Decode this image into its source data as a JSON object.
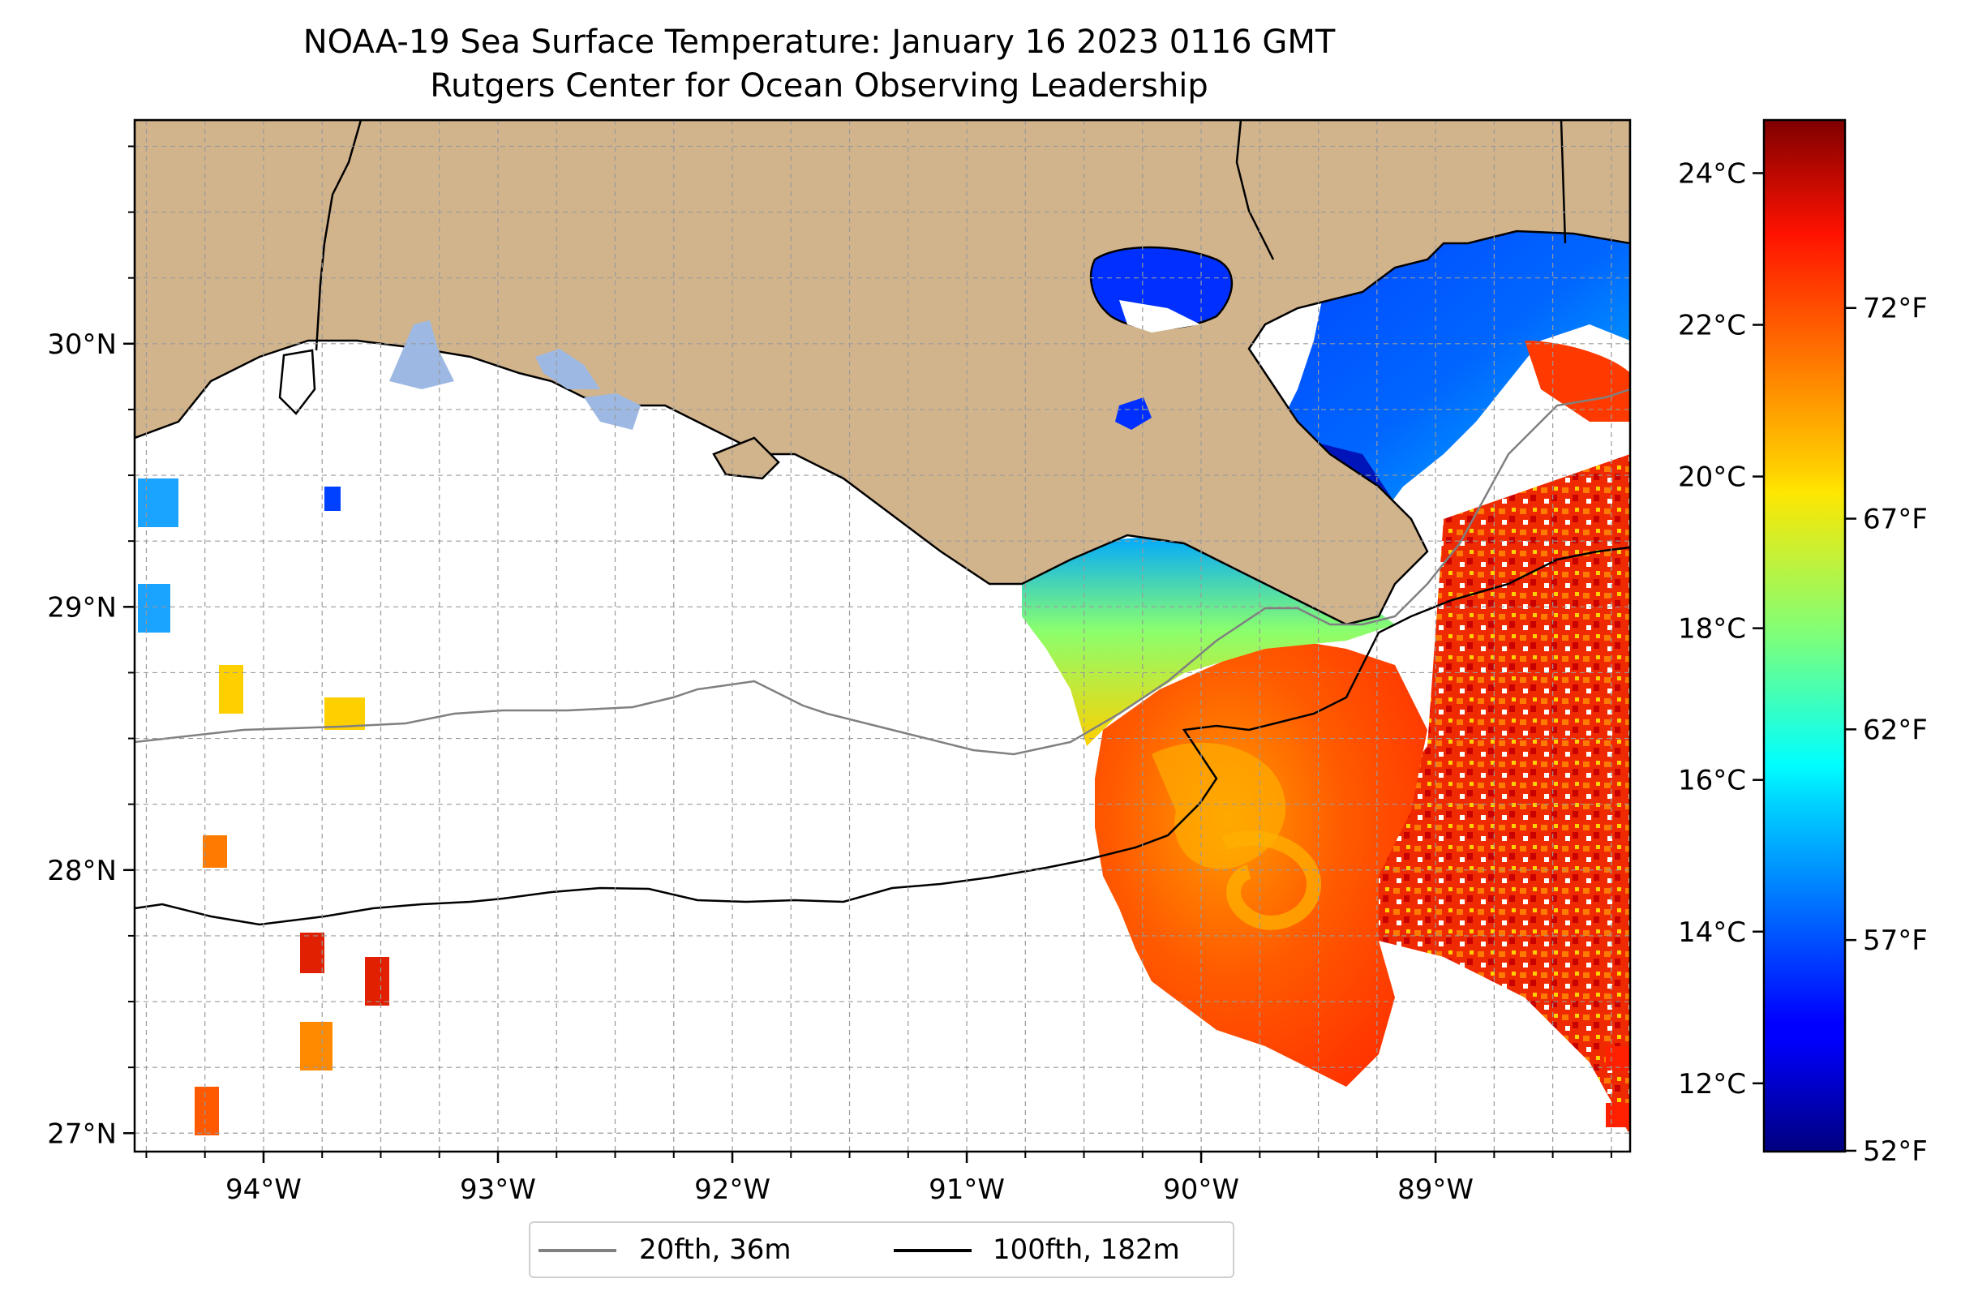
{
  "title": {
    "line1": "NOAA-19 Sea Surface Temperature: January 16 2023 0116 GMT",
    "line2": "Rutgers Center for Ocean Observing Leadership"
  },
  "map": {
    "lon_range": [
      -94.55,
      -88.17
    ],
    "lat_range": [
      26.93,
      30.85
    ],
    "lon_ticks": [
      {
        "value": -94,
        "label": "94°W"
      },
      {
        "value": -93,
        "label": "93°W"
      },
      {
        "value": -92,
        "label": "92°W"
      },
      {
        "value": -91,
        "label": "91°W"
      },
      {
        "value": -90,
        "label": "90°W"
      },
      {
        "value": -89,
        "label": "89°W"
      }
    ],
    "lat_ticks": [
      {
        "value": 27,
        "label": "27°N"
      },
      {
        "value": 28,
        "label": "28°N"
      },
      {
        "value": 29,
        "label": "29°N"
      },
      {
        "value": 30,
        "label": "30°N"
      }
    ],
    "grid": true,
    "land_color": "#d2b48c",
    "water_body_color": "#9db9e3"
  },
  "colorbar": {
    "colormap": "jet",
    "celsius_range": [
      11.1,
      24.7
    ],
    "celsius_ticks": [
      {
        "value": 12,
        "label": "12°C"
      },
      {
        "value": 14,
        "label": "14°C"
      },
      {
        "value": 16,
        "label": "16°C"
      },
      {
        "value": 18,
        "label": "18°C"
      },
      {
        "value": 20,
        "label": "20°C"
      },
      {
        "value": 22,
        "label": "22°C"
      },
      {
        "value": 24,
        "label": "24°C"
      }
    ],
    "fahrenheit_ticks": [
      {
        "value": 52,
        "label": "52°F"
      },
      {
        "value": 57,
        "label": "57°F"
      },
      {
        "value": 62,
        "label": "62°F"
      },
      {
        "value": 67,
        "label": "67°F"
      },
      {
        "value": 72,
        "label": "72°F"
      }
    ]
  },
  "legend": {
    "placement": "below-center",
    "items": [
      {
        "label": "20fth, 36m",
        "color": "#808080"
      },
      {
        "label": "100fth, 182m",
        "color": "#000000"
      }
    ]
  }
}
